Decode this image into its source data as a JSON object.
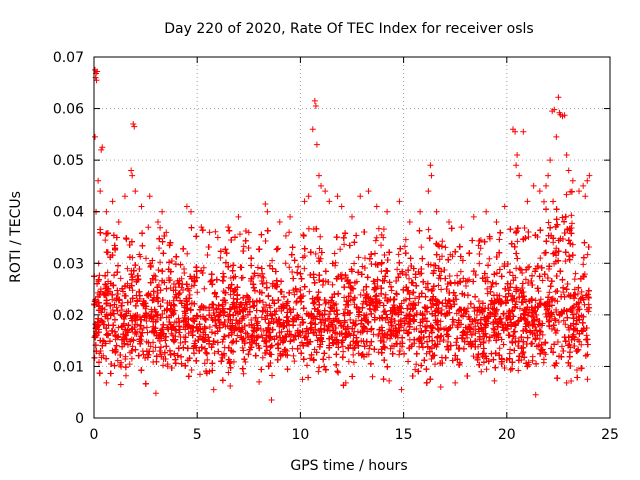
{
  "chart_data": {
    "type": "scatter",
    "title": "Day 220 of 2020, Rate Of TEC Index for receiver osls",
    "xlabel": "GPS time / hours",
    "ylabel": "ROTI / TECUs",
    "xlim": [
      0,
      25
    ],
    "ylim": [
      0,
      0.07
    ],
    "x_ticks": [
      0,
      5,
      10,
      15,
      20,
      25
    ],
    "x_tick_labels": [
      "0",
      "5",
      "10",
      "15",
      "20",
      "25"
    ],
    "y_ticks": [
      0,
      0.01,
      0.02,
      0.03,
      0.04,
      0.05,
      0.06,
      0.07
    ],
    "y_tick_labels": [
      "0",
      "0.01",
      "0.02",
      "0.03",
      "0.04",
      "0.05",
      "0.06",
      "0.07"
    ],
    "grid": true,
    "marker": "+",
    "color": "#ff0000",
    "series": [
      {
        "points": [
          [
            0.05,
            0.0675
          ],
          [
            0.1,
            0.0668
          ],
          [
            0.15,
            0.0672
          ],
          [
            0.08,
            0.066
          ],
          [
            0.12,
            0.0655
          ],
          [
            0.05,
            0.0545
          ],
          [
            0.35,
            0.052
          ],
          [
            0.4,
            0.0525
          ],
          [
            0.2,
            0.046
          ],
          [
            0.3,
            0.044
          ],
          [
            0.1,
            0.04
          ],
          [
            0.6,
            0.04
          ],
          [
            0.9,
            0.042
          ],
          [
            1.2,
            0.038
          ],
          [
            1.5,
            0.043
          ],
          [
            1.9,
            0.057
          ],
          [
            1.95,
            0.0565
          ],
          [
            1.8,
            0.048
          ],
          [
            2.0,
            0.044
          ],
          [
            1.85,
            0.047
          ],
          [
            2.3,
            0.041
          ],
          [
            2.7,
            0.043
          ],
          [
            3.1,
            0.038
          ],
          [
            3.5,
            0.036
          ],
          [
            3.3,
            0.04
          ],
          [
            4.5,
            0.041
          ],
          [
            4.7,
            0.04
          ],
          [
            5.2,
            0.037
          ],
          [
            5.6,
            0.036
          ],
          [
            6.0,
            0.035
          ],
          [
            6.5,
            0.037
          ],
          [
            7.0,
            0.039
          ],
          [
            7.5,
            0.036
          ],
          [
            8.3,
            0.0415
          ],
          [
            8.4,
            0.04
          ],
          [
            9.0,
            0.038
          ],
          [
            9.5,
            0.039
          ],
          [
            10.2,
            0.042
          ],
          [
            10.4,
            0.043
          ],
          [
            10.7,
            0.0615
          ],
          [
            10.75,
            0.0605
          ],
          [
            10.6,
            0.056
          ],
          [
            10.8,
            0.053
          ],
          [
            10.9,
            0.047
          ],
          [
            11.0,
            0.045
          ],
          [
            11.2,
            0.044
          ],
          [
            11.4,
            0.042
          ],
          [
            11.8,
            0.043
          ],
          [
            12.0,
            0.041
          ],
          [
            12.5,
            0.039
          ],
          [
            12.9,
            0.043
          ],
          [
            13.3,
            0.044
          ],
          [
            13.7,
            0.041
          ],
          [
            14.2,
            0.04
          ],
          [
            14.8,
            0.042
          ],
          [
            15.3,
            0.038
          ],
          [
            15.8,
            0.04
          ],
          [
            16.3,
            0.049
          ],
          [
            16.35,
            0.047
          ],
          [
            16.2,
            0.044
          ],
          [
            16.6,
            0.04
          ],
          [
            17.2,
            0.038
          ],
          [
            17.8,
            0.037
          ],
          [
            18.4,
            0.039
          ],
          [
            19.0,
            0.04
          ],
          [
            19.5,
            0.038
          ],
          [
            19.9,
            0.041
          ],
          [
            20.3,
            0.056
          ],
          [
            20.4,
            0.0555
          ],
          [
            20.5,
            0.051
          ],
          [
            20.45,
            0.049
          ],
          [
            20.6,
            0.047
          ],
          [
            20.8,
            0.0555
          ],
          [
            21.0,
            0.042
          ],
          [
            21.3,
            0.045
          ],
          [
            21.6,
            0.044
          ],
          [
            21.9,
            0.045
          ],
          [
            22.0,
            0.047
          ],
          [
            22.1,
            0.05
          ],
          [
            22.2,
            0.0595
          ],
          [
            22.3,
            0.0598
          ],
          [
            22.4,
            0.0545
          ],
          [
            22.5,
            0.0622
          ],
          [
            22.55,
            0.0592
          ],
          [
            22.6,
            0.0588
          ],
          [
            22.7,
            0.0585
          ],
          [
            22.8,
            0.0587
          ],
          [
            22.9,
            0.051
          ],
          [
            23.0,
            0.048
          ],
          [
            23.2,
            0.046
          ],
          [
            23.5,
            0.044
          ],
          [
            23.7,
            0.045
          ],
          [
            23.8,
            0.043
          ],
          [
            23.9,
            0.046
          ],
          [
            24.0,
            0.047
          ],
          [
            1.3,
            0.0065
          ],
          [
            3.0,
            0.0048
          ],
          [
            5.8,
            0.0055
          ],
          [
            8.0,
            0.007
          ],
          [
            8.6,
            0.0035
          ],
          [
            10.1,
            0.0075
          ],
          [
            12.2,
            0.0068
          ],
          [
            14.3,
            0.0072
          ],
          [
            14.9,
            0.0055
          ],
          [
            17.5,
            0.0068
          ],
          [
            19.4,
            0.0072
          ],
          [
            21.4,
            0.0045
          ],
          [
            22.9,
            0.0068
          ],
          [
            0.6,
            0.0068
          ],
          [
            6.6,
            0.0062
          ],
          [
            16.8,
            0.006
          ]
        ]
      }
    ]
  }
}
